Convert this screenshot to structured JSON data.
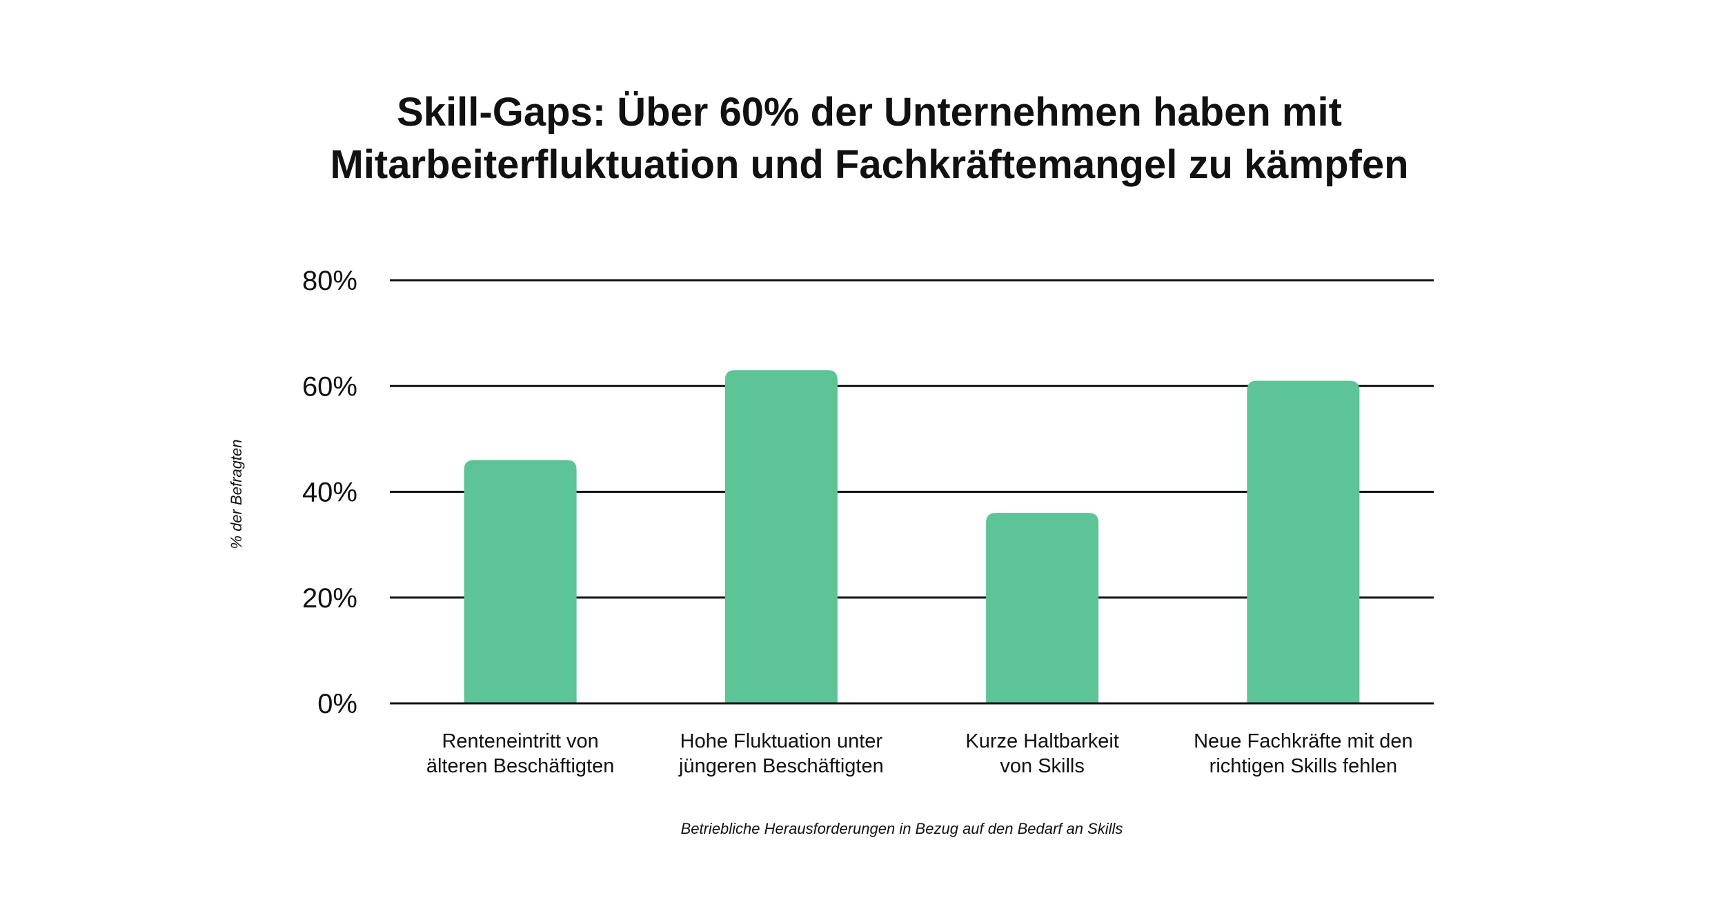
{
  "chart_data": {
    "type": "bar",
    "title_lines": [
      "Skill-Gaps: Über 60% der Unternehmen haben mit",
      "Mitarbeiterfluktuation und Fachkräftemangel zu kämpfen"
    ],
    "categories": [
      [
        "Renteneintritt von",
        "älteren Beschäftigten"
      ],
      [
        "Hohe Fluktuation unter",
        "jüngeren Beschäftigten"
      ],
      [
        "Kurze Haltbarkeit",
        "von Skills"
      ],
      [
        "Neue Fachkräfte mit den",
        "richtigen Skills fehlen"
      ]
    ],
    "values": [
      46,
      63,
      36,
      61
    ],
    "ylim": [
      0,
      80
    ],
    "yticks": [
      0,
      20,
      40,
      60,
      80
    ],
    "ytick_labels": [
      "0%",
      "20%",
      "40%",
      "60%",
      "80%"
    ],
    "ylabel": "% der Befragten",
    "xlabel": "Betriebliche Herausforderungen in Bezug auf den Bedarf an Skills",
    "grid": true,
    "legend": "none",
    "colors": {
      "bar": "#5cc497",
      "grid": "#111111",
      "text": "#111111"
    }
  }
}
